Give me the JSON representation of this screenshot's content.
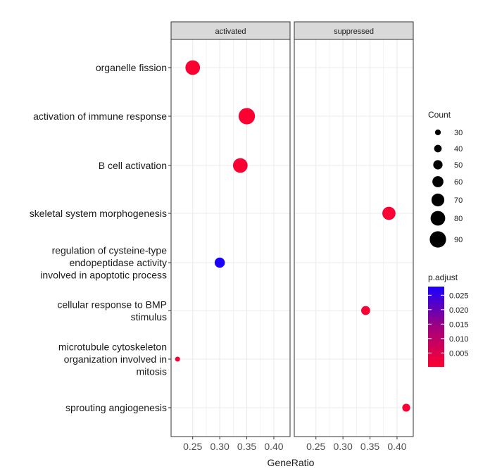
{
  "chart_data": {
    "type": "scatter",
    "subtype": "dotplot",
    "xlabel": "GeneRatio",
    "ylabel": "",
    "xlim": [
      0.21,
      0.43
    ],
    "xticks": [
      0.25,
      0.3,
      0.35,
      0.4
    ],
    "xtick_labels": [
      "0.25",
      "0.30",
      "0.35",
      "0.40"
    ],
    "grid": true,
    "legend_position": "right",
    "panels": [
      "activated",
      "suppressed"
    ],
    "terms": [
      [
        "organelle fission"
      ],
      [
        "activation of immune response"
      ],
      [
        "B cell activation"
      ],
      [
        "skeletal system morphogenesis"
      ],
      [
        "regulation of cysteine-type",
        "endopeptidase activity",
        "involved in apoptotic process"
      ],
      [
        "cellular response to BMP",
        "stimulus"
      ],
      [
        "microtubule cytoskeleton",
        "organization involved in",
        "mitosis"
      ],
      [
        "sprouting angiogenesis"
      ]
    ],
    "points": [
      {
        "panel": 0,
        "term": 0,
        "gene_ratio": 0.25,
        "count": 80,
        "p_adjust": 0.0005
      },
      {
        "panel": 0,
        "term": 1,
        "gene_ratio": 0.35,
        "count": 90,
        "p_adjust": 0.0005
      },
      {
        "panel": 0,
        "term": 2,
        "gene_ratio": 0.338,
        "count": 80,
        "p_adjust": 0.0008
      },
      {
        "panel": 1,
        "term": 3,
        "gene_ratio": 0.385,
        "count": 72,
        "p_adjust": 0.001
      },
      {
        "panel": 0,
        "term": 4,
        "gene_ratio": 0.3,
        "count": 55,
        "p_adjust": 0.028
      },
      {
        "panel": 1,
        "term": 5,
        "gene_ratio": 0.342,
        "count": 48,
        "p_adjust": 0.001
      },
      {
        "panel": 0,
        "term": 6,
        "gene_ratio": 0.222,
        "count": 25,
        "p_adjust": 0.001
      },
      {
        "panel": 1,
        "term": 7,
        "gene_ratio": 0.417,
        "count": 42,
        "p_adjust": 0.001
      }
    ],
    "size_legend": {
      "title": "Count",
      "values": [
        30,
        40,
        50,
        60,
        70,
        80,
        90
      ],
      "labels": [
        "30",
        "40",
        "50",
        "60",
        "70",
        "80",
        "90"
      ]
    },
    "color_legend": {
      "title": "p.adjust",
      "labels": [
        "0.025",
        "0.020",
        "0.015",
        "0.010",
        "0.005"
      ],
      "values": [
        0.025,
        0.02,
        0.015,
        0.01,
        0.005
      ],
      "range": [
        0.0002,
        0.028
      ],
      "low_color": "#ff0000",
      "high_color": "#0000ff"
    },
    "colors": {
      "panel_background": "#ffffff",
      "strip_background": "#d9d9d9",
      "grid": "#ebebeb",
      "border": "#333333"
    }
  }
}
